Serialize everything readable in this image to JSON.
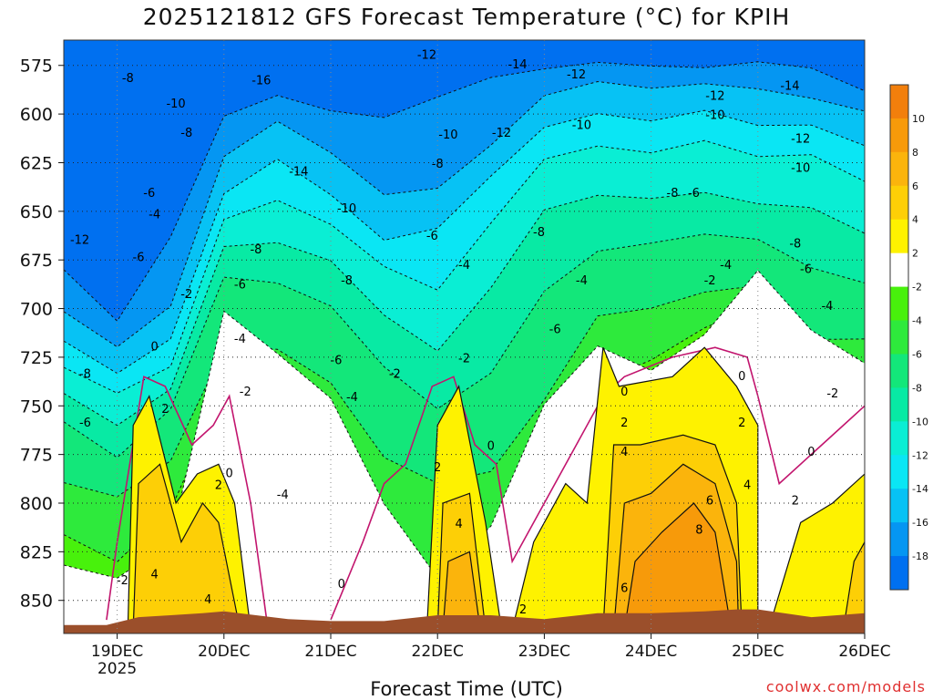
{
  "title": "2025121812 GFS Forecast Temperature (°C) for KPIH",
  "xlabel": "Forecast Time (UTC)",
  "watermark": "coolwx.com/models",
  "chart_data": {
    "type": "heatmap",
    "title": "2025121812 GFS Forecast Temperature (°C) for KPIH",
    "xlabel": "Forecast Time (UTC)",
    "ylabel": "",
    "x_ticks": [
      "19DEC",
      "20DEC",
      "21DEC",
      "22DEC",
      "23DEC",
      "24DEC",
      "25DEC",
      "26DEC"
    ],
    "x_tick_sublabels": {
      "19DEC": "2025"
    },
    "y_ticks": [
      575,
      600,
      625,
      650,
      675,
      700,
      725,
      750,
      775,
      800,
      825,
      850
    ],
    "y_scale": "inverted",
    "grid": true,
    "colorbar": {
      "position": "right",
      "tick_labels": [
        "10",
        "8",
        "6",
        "4",
        "2",
        "-2",
        "-4",
        "-6",
        "-8",
        "-10",
        "-12",
        "-14",
        "-16",
        "-18"
      ],
      "bands": [
        {
          "lo": 10,
          "hi": 12,
          "color": "#f27f0c"
        },
        {
          "lo": 8,
          "hi": 10,
          "color": "#f79a0a"
        },
        {
          "lo": 6,
          "hi": 8,
          "color": "#fbb40c"
        },
        {
          "lo": 4,
          "hi": 6,
          "color": "#fdcf06"
        },
        {
          "lo": 2,
          "hi": 4,
          "color": "#fef200"
        },
        {
          "lo": -2,
          "hi": 2,
          "color": "#ffffff"
        },
        {
          "lo": -4,
          "hi": -2,
          "color": "#48f10c"
        },
        {
          "lo": -6,
          "hi": -4,
          "color": "#2eea3c"
        },
        {
          "lo": -8,
          "hi": -6,
          "color": "#13e77a"
        },
        {
          "lo": -10,
          "hi": -8,
          "color": "#08eaa4"
        },
        {
          "lo": -12,
          "hi": -10,
          "color": "#0aeed4"
        },
        {
          "lo": -14,
          "hi": -12,
          "color": "#0ae6f4"
        },
        {
          "lo": -16,
          "hi": -14,
          "color": "#07c2f4"
        },
        {
          "lo": -18,
          "hi": -16,
          "color": "#0596f2"
        },
        {
          "lo": -20,
          "hi": -18,
          "color": "#0070f0"
        }
      ]
    },
    "fill_bands": [
      {
        "name": "-18",
        "color": "#0070f0",
        "top": [
          575,
          575,
          575,
          575,
          575,
          575,
          575,
          575,
          575,
          575,
          575,
          575,
          575,
          575,
          575,
          575
        ],
        "bottom": [
          680,
          705,
          665,
          600,
          590,
          600,
          600,
          592,
          582,
          575,
          575,
          575,
          575,
          575,
          575,
          588
        ]
      },
      {
        "name": "-16",
        "color": "#0596f2",
        "top": [
          680,
          705,
          665,
          600,
          590,
          600,
          600,
          592,
          582,
          575,
          575,
          575,
          575,
          575,
          575,
          588
        ],
        "bottom": [
          700,
          720,
          700,
          620,
          605,
          620,
          640,
          640,
          615,
          590,
          585,
          585,
          585,
          588,
          590,
          600
        ]
      },
      {
        "name": "-14",
        "color": "#07c2f4",
        "top": [
          700,
          720,
          700,
          620,
          605,
          620,
          640,
          640,
          615,
          590,
          585,
          585,
          585,
          588,
          590,
          600
        ],
        "bottom": [
          715,
          735,
          715,
          640,
          625,
          640,
          665,
          660,
          630,
          608,
          600,
          602,
          600,
          605,
          605,
          618
        ]
      },
      {
        "name": "-12",
        "color": "#0ae6f4",
        "top": [
          715,
          735,
          715,
          640,
          625,
          640,
          665,
          660,
          630,
          608,
          600,
          602,
          600,
          605,
          605,
          618
        ],
        "bottom": [
          730,
          745,
          728,
          655,
          645,
          655,
          680,
          690,
          655,
          625,
          615,
          620,
          615,
          620,
          622,
          635
        ]
      },
      {
        "name": "-10",
        "color": "#0aeed4",
        "top": [
          730,
          745,
          728,
          655,
          645,
          655,
          680,
          690,
          655,
          625,
          615,
          620,
          615,
          620,
          622,
          635
        ],
        "bottom": [
          745,
          760,
          740,
          670,
          665,
          675,
          705,
          720,
          690,
          650,
          640,
          645,
          640,
          645,
          650,
          660
        ]
      },
      {
        "name": "-8",
        "color": "#08eaa4",
        "top": [
          745,
          760,
          740,
          670,
          665,
          675,
          705,
          720,
          690,
          650,
          640,
          645,
          640,
          645,
          650,
          660
        ],
        "bottom": [
          760,
          775,
          752,
          685,
          685,
          700,
          730,
          750,
          735,
          690,
          670,
          668,
          660,
          665,
          680,
          685
        ]
      },
      {
        "name": "-6",
        "color": "#13e77a",
        "top": [
          760,
          775,
          752,
          685,
          685,
          700,
          730,
          750,
          735,
          690,
          670,
          668,
          660,
          665,
          680,
          685
        ],
        "bottom": [
          790,
          795,
          780,
          720,
          720,
          740,
          775,
          790,
          785,
          745,
          705,
          700,
          690,
          690,
          715,
          715
        ]
      },
      {
        "name": "-4",
        "color": "#2eea3c",
        "top": [
          790,
          795,
          780,
          720,
          720,
          740,
          775,
          790,
          785,
          745,
          705,
          700,
          690,
          690,
          715,
          715
        ],
        "bottom": [
          815,
          830,
          805,
          740,
          760,
          780,
          825,
          850,
          825,
          795,
          740,
          725,
          710,
          700,
          740,
          745
        ]
      },
      {
        "name": "-2",
        "color": "#48f10c",
        "top": [
          815,
          830,
          805,
          740,
          760,
          780,
          825,
          850,
          825,
          795,
          740,
          725,
          710,
          700,
          740,
          745
        ],
        "bottom": [
          830,
          840,
          820,
          700,
          725,
          745,
          800,
          840,
          810,
          750,
          720,
          730,
          715,
          680,
          710,
          730
        ]
      }
    ],
    "warm_layers": [
      {
        "name": "2",
        "color": "#fef200",
        "points": [
          [
            19.1,
            865
          ],
          [
            19.15,
            760
          ],
          [
            19.3,
            745
          ],
          [
            19.55,
            800
          ],
          [
            19.75,
            785
          ],
          [
            19.95,
            780
          ],
          [
            20.1,
            800
          ],
          [
            20.25,
            865
          ],
          [
            21.9,
            865
          ],
          [
            22.0,
            760
          ],
          [
            22.2,
            740
          ],
          [
            22.45,
            810
          ],
          [
            22.6,
            865
          ],
          [
            22.7,
            865
          ],
          [
            22.9,
            820
          ],
          [
            23.2,
            790
          ],
          [
            23.4,
            800
          ],
          [
            23.55,
            720
          ],
          [
            23.7,
            740
          ],
          [
            24.2,
            735
          ],
          [
            24.5,
            720
          ],
          [
            24.8,
            740
          ],
          [
            25.0,
            760
          ],
          [
            25.0,
            865
          ],
          [
            25.1,
            865
          ],
          [
            25.4,
            810
          ],
          [
            25.7,
            800
          ],
          [
            26.0,
            785
          ],
          [
            26.0,
            865
          ]
        ]
      },
      {
        "name": "4",
        "color": "#fdcf06",
        "points": [
          [
            19.15,
            865
          ],
          [
            19.2,
            790
          ],
          [
            19.4,
            780
          ],
          [
            19.6,
            820
          ],
          [
            19.8,
            800
          ],
          [
            19.95,
            810
          ],
          [
            20.15,
            865
          ],
          [
            22.0,
            865
          ],
          [
            22.05,
            800
          ],
          [
            22.3,
            795
          ],
          [
            22.45,
            865
          ],
          [
            23.55,
            865
          ],
          [
            23.65,
            770
          ],
          [
            23.9,
            770
          ],
          [
            24.3,
            765
          ],
          [
            24.6,
            770
          ],
          [
            24.8,
            800
          ],
          [
            24.85,
            865
          ],
          [
            25.8,
            865
          ],
          [
            25.9,
            830
          ],
          [
            26.0,
            820
          ],
          [
            26.0,
            865
          ]
        ]
      },
      {
        "name": "6",
        "color": "#fbb40c",
        "points": [
          [
            22.05,
            865
          ],
          [
            22.1,
            830
          ],
          [
            22.3,
            825
          ],
          [
            22.4,
            865
          ],
          [
            23.65,
            865
          ],
          [
            23.75,
            800
          ],
          [
            24.0,
            795
          ],
          [
            24.3,
            780
          ],
          [
            24.6,
            790
          ],
          [
            24.8,
            830
          ],
          [
            24.82,
            865
          ]
        ]
      },
      {
        "name": "8",
        "color": "#f79a0a",
        "points": [
          [
            23.75,
            865
          ],
          [
            23.85,
            830
          ],
          [
            24.1,
            815
          ],
          [
            24.4,
            800
          ],
          [
            24.6,
            815
          ],
          [
            24.75,
            865
          ]
        ]
      }
    ],
    "contours": [
      {
        "value": -16,
        "style": "dashed",
        "color": "#111111"
      },
      {
        "value": -14,
        "style": "dashed",
        "color": "#111111"
      },
      {
        "value": -12,
        "style": "dashed",
        "color": "#111111"
      },
      {
        "value": -10,
        "style": "dashed",
        "color": "#111111"
      },
      {
        "value": -8,
        "style": "dashed",
        "color": "#111111"
      },
      {
        "value": -6,
        "style": "dashed",
        "color": "#111111"
      },
      {
        "value": -4,
        "style": "dashed",
        "color": "#111111"
      },
      {
        "value": -2,
        "style": "dashed",
        "color": "#111111"
      },
      {
        "value": 0,
        "style": "solid",
        "color": "#c2156e"
      },
      {
        "value": 2,
        "style": "solid",
        "color": "#111111"
      },
      {
        "value": 4,
        "style": "solid",
        "color": "#111111"
      },
      {
        "value": 6,
        "style": "solid",
        "color": "#111111"
      },
      {
        "value": 8,
        "style": "solid",
        "color": "#111111"
      }
    ],
    "contour_labels": [
      {
        "text": "-8",
        "x": 19.1,
        "y": 582
      },
      {
        "text": "-16",
        "x": 20.35,
        "y": 583
      },
      {
        "text": "-12",
        "x": 21.9,
        "y": 570
      },
      {
        "text": "-14",
        "x": 22.75,
        "y": 575
      },
      {
        "text": "-12",
        "x": 23.3,
        "y": 580
      },
      {
        "text": "-12",
        "x": 24.6,
        "y": 591
      },
      {
        "text": "-14",
        "x": 25.3,
        "y": 586
      },
      {
        "text": "-10",
        "x": 19.55,
        "y": 595
      },
      {
        "text": "-8",
        "x": 19.65,
        "y": 610
      },
      {
        "text": "-10",
        "x": 22.1,
        "y": 611
      },
      {
        "text": "-12",
        "x": 22.6,
        "y": 610
      },
      {
        "text": "-10",
        "x": 23.35,
        "y": 606
      },
      {
        "text": "-10",
        "x": 24.6,
        "y": 601
      },
      {
        "text": "-12",
        "x": 25.4,
        "y": 613
      },
      {
        "text": "-14",
        "x": 20.7,
        "y": 630
      },
      {
        "text": "-8",
        "x": 22.0,
        "y": 626
      },
      {
        "text": "-10",
        "x": 25.4,
        "y": 628
      },
      {
        "text": "-6",
        "x": 19.3,
        "y": 641
      },
      {
        "text": "-8",
        "x": 24.2,
        "y": 641
      },
      {
        "text": "-6",
        "x": 24.4,
        "y": 641
      },
      {
        "text": "-4",
        "x": 19.35,
        "y": 652
      },
      {
        "text": "-10",
        "x": 21.15,
        "y": 649
      },
      {
        "text": "-12",
        "x": 18.65,
        "y": 665
      },
      {
        "text": "-6",
        "x": 21.95,
        "y": 663
      },
      {
        "text": "-8",
        "x": 22.95,
        "y": 661
      },
      {
        "text": "-8",
        "x": 25.35,
        "y": 667
      },
      {
        "text": "-6",
        "x": 19.2,
        "y": 674
      },
      {
        "text": "-8",
        "x": 20.3,
        "y": 670
      },
      {
        "text": "-4",
        "x": 22.25,
        "y": 678
      },
      {
        "text": "-4",
        "x": 24.7,
        "y": 678
      },
      {
        "text": "-6",
        "x": 25.45,
        "y": 680
      },
      {
        "text": "-2",
        "x": 19.65,
        "y": 693
      },
      {
        "text": "-6",
        "x": 20.15,
        "y": 688
      },
      {
        "text": "-8",
        "x": 21.15,
        "y": 686
      },
      {
        "text": "-4",
        "x": 23.35,
        "y": 686
      },
      {
        "text": "-2",
        "x": 24.55,
        "y": 686
      },
      {
        "text": "-4",
        "x": 25.65,
        "y": 699
      },
      {
        "text": "-4",
        "x": 20.15,
        "y": 716
      },
      {
        "text": "-6",
        "x": 23.1,
        "y": 711
      },
      {
        "text": "0",
        "x": 19.35,
        "y": 720
      },
      {
        "text": "-8",
        "x": 18.7,
        "y": 734
      },
      {
        "text": "-6",
        "x": 21.05,
        "y": 727
      },
      {
        "text": "-2",
        "x": 21.6,
        "y": 734
      },
      {
        "text": "-2",
        "x": 22.25,
        "y": 726
      },
      {
        "text": "0",
        "x": 24.85,
        "y": 735
      },
      {
        "text": "-4",
        "x": 21.2,
        "y": 746
      },
      {
        "text": "-2",
        "x": 20.2,
        "y": 743
      },
      {
        "text": "0",
        "x": 23.75,
        "y": 743
      },
      {
        "text": "-2",
        "x": 25.7,
        "y": 744
      },
      {
        "text": "2",
        "x": 19.45,
        "y": 752
      },
      {
        "text": "-6",
        "x": 18.7,
        "y": 759
      },
      {
        "text": "2",
        "x": 23.75,
        "y": 759
      },
      {
        "text": "2",
        "x": 24.85,
        "y": 759
      },
      {
        "text": "0",
        "x": 22.5,
        "y": 771
      },
      {
        "text": "4",
        "x": 23.75,
        "y": 774
      },
      {
        "text": "0",
        "x": 25.5,
        "y": 774
      },
      {
        "text": "0",
        "x": 20.05,
        "y": 785
      },
      {
        "text": "2",
        "x": 22.0,
        "y": 782
      },
      {
        "text": "4",
        "x": 24.9,
        "y": 791
      },
      {
        "text": "2",
        "x": 19.95,
        "y": 791
      },
      {
        "text": "-4",
        "x": 20.55,
        "y": 796
      },
      {
        "text": "6",
        "x": 24.55,
        "y": 799
      },
      {
        "text": "2",
        "x": 25.35,
        "y": 799
      },
      {
        "text": "4",
        "x": 22.2,
        "y": 811
      },
      {
        "text": "8",
        "x": 24.45,
        "y": 814
      },
      {
        "text": "4",
        "x": 19.35,
        "y": 837
      },
      {
        "text": "-2",
        "x": 19.05,
        "y": 840
      },
      {
        "text": "0",
        "x": 21.1,
        "y": 842
      },
      {
        "text": "6",
        "x": 23.75,
        "y": 844
      },
      {
        "text": "4",
        "x": 19.85,
        "y": 850
      },
      {
        "text": "2",
        "x": 22.8,
        "y": 855
      }
    ],
    "terrain_color": "#9b4f2b",
    "xlim": [
      "18.5DEC",
      "26DEC"
    ],
    "ylim": [
      562,
      867
    ]
  }
}
